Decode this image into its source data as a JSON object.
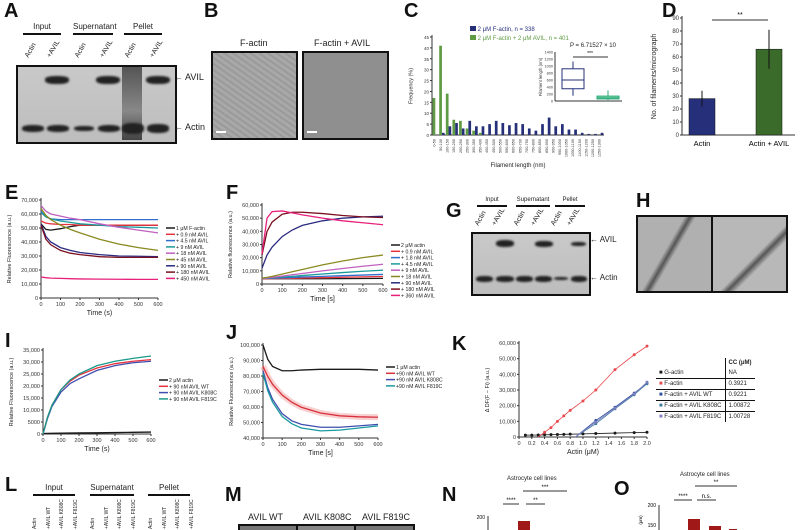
{
  "panels": {
    "A": "A",
    "B": "B",
    "C": "C",
    "D": "D",
    "E": "E",
    "F": "F",
    "G": "G",
    "H": "H",
    "I": "I",
    "J": "J",
    "K": "K",
    "L": "L",
    "M": "M",
    "N": "N",
    "O": "O"
  },
  "gel_a": {
    "groups": [
      "Input",
      "Supernatant",
      "Pellet"
    ],
    "lanes": [
      "Actin",
      "+AVIL",
      "Actin",
      "+AVIL",
      "Actin",
      "+AVIL"
    ],
    "markers": [
      "AVIL",
      "Actin"
    ]
  },
  "micro_b": {
    "labels": [
      "F-actin",
      "F-actin + AVIL"
    ]
  },
  "gel_g": {
    "groups": [
      "Input",
      "Supernatant",
      "Pellet"
    ],
    "lanes": [
      "Actin",
      "+AVIL",
      "Actin",
      "+AVIL",
      "Actin",
      "+AVIL"
    ],
    "markers": [
      "AVIL",
      "Actin"
    ]
  },
  "gel_l": {
    "groups": [
      "Input",
      "Supernatant",
      "Pellet"
    ],
    "lanes": [
      "Actin",
      "+AVIL WT",
      "+AVIL K808C",
      "+AVIL F819C",
      "Actin",
      "+AVIL WT",
      "+AVIL K808C",
      "+AVIL F819C",
      "Actin",
      "+AVIL WT",
      "+AVIL K808C",
      "+AVIL F819C"
    ]
  },
  "micro_m": {
    "labels": [
      "AVIL WT",
      "AVIL K808C",
      "AVIL F819C"
    ]
  },
  "chart_data": [
    {
      "panel": "C",
      "type": "bar",
      "ylabel": "Frequency (%)",
      "xlabel": "Filament length (nm)",
      "ylim": [
        0,
        45
      ],
      "yticks": [
        0,
        5,
        10,
        15,
        20,
        25,
        30,
        35,
        40,
        45
      ],
      "categories": [
        "0-50",
        "50-100",
        "100-150",
        "150-200",
        "200-250",
        "250-300",
        "300-350",
        "350-400",
        "400-450",
        "450-500",
        "500-550",
        "550-600",
        "600-650",
        "650-700",
        "700-750",
        "750-800",
        "800-850",
        "850-900",
        "900-950",
        "950-1000",
        "1000-1050",
        "1050-1100",
        "1100-1150",
        "1150-1200",
        "1200-1250",
        "1250-1300"
      ],
      "series": [
        {
          "name": "2 μM F-actin, n = 338",
          "color": "#26307a",
          "values": [
            0,
            1,
            4,
            5.5,
            3,
            6.5,
            4,
            4,
            5,
            6.5,
            5.5,
            4.5,
            5.5,
            5,
            3,
            2,
            5,
            8,
            4,
            5,
            2.5,
            2.5,
            1,
            0.5,
            0.5,
            1
          ]
        },
        {
          "name": "2 μM F-actin + 2 μM AVIL, n = 401",
          "color": "#5f9a45",
          "values": [
            17,
            41,
            19,
            7,
            6.5,
            3,
            2,
            1,
            0,
            0,
            0,
            0,
            0,
            0,
            0,
            0,
            0,
            0,
            0,
            0,
            0,
            0,
            0,
            0,
            0,
            0
          ]
        }
      ],
      "inset": {
        "type": "box",
        "ylabel": "Filament length (nm)",
        "ylim": [
          0,
          1400
        ],
        "yticks": [
          0,
          200,
          400,
          600,
          800,
          1000,
          1200,
          1400
        ],
        "p_text": "P = 6.71527 × 10",
        "sig": "***",
        "boxes": [
          {
            "color": "#26307a",
            "min": 150,
            "q1": 350,
            "median": 600,
            "q3": 920,
            "max": 1130
          },
          {
            "color": "#2aa873",
            "min": 30,
            "q1": 60,
            "median": 90,
            "q3": 140,
            "max": 300
          }
        ]
      }
    },
    {
      "panel": "D",
      "type": "bar",
      "ylabel": "No. of filaments/micrograph",
      "ylim": [
        0,
        90
      ],
      "yticks": [
        0,
        10,
        20,
        30,
        40,
        50,
        60,
        70,
        80,
        90
      ],
      "categories": [
        "Actin",
        "Actin + AVIL"
      ],
      "values": [
        28,
        66
      ],
      "errors": [
        6,
        15
      ],
      "colors": [
        "#26307a",
        "#3b6b2a"
      ],
      "sig": "**"
    },
    {
      "panel": "E",
      "type": "line",
      "xlabel": "Time (s)",
      "ylabel": "Relative Fluorescence (a.u.)",
      "xlim": [
        0,
        600
      ],
      "ylim": [
        0,
        70000
      ],
      "xticks": [
        0,
        100,
        200,
        300,
        400,
        500,
        600
      ],
      "yticks": [
        "0",
        "10,000",
        "20,000",
        "30,000",
        "40,000",
        "50,000",
        "60,000",
        "70,000"
      ],
      "x": [
        0,
        25,
        50,
        100,
        150,
        200,
        300,
        400,
        500,
        600
      ],
      "series": [
        {
          "name": "1 μM F-actin",
          "color": "#1a1a1a",
          "y": [
            53000,
            49000,
            48500,
            49500,
            51000,
            52000,
            52000,
            52000,
            52000,
            52000
          ]
        },
        {
          "name": "+ 0.9 nM AVIL",
          "color": "#e8323c",
          "y": [
            55000,
            53500,
            53000,
            52500,
            52500,
            52000,
            52000,
            52000,
            52000,
            52000
          ]
        },
        {
          "name": "+ 4.5 nM AVIL",
          "color": "#2f6fd0",
          "y": [
            62000,
            58000,
            56500,
            56000,
            56000,
            56000,
            56000,
            56000,
            56000,
            56000
          ]
        },
        {
          "name": "+ 9 nM AVIL",
          "color": "#1a9a9a",
          "y": [
            61000,
            58000,
            56500,
            55000,
            54000,
            53000,
            52000,
            51000,
            50500,
            50000
          ]
        },
        {
          "name": "+ 18 nM AVIL",
          "color": "#c060c0",
          "y": [
            66000,
            62000,
            60000,
            58500,
            57000,
            56000,
            53000,
            50500,
            48500,
            46500
          ]
        },
        {
          "name": "+ 45 nM AVIL",
          "color": "#8a8a20",
          "y": [
            64000,
            59000,
            56000,
            52000,
            49000,
            46500,
            42000,
            38500,
            36000,
            34000
          ]
        },
        {
          "name": "+ 90 nM AVIL",
          "color": "#2a2a80",
          "y": [
            53000,
            44000,
            40000,
            36000,
            34000,
            32500,
            31000,
            30000,
            29800,
            29500
          ]
        },
        {
          "name": "+ 180 nM AVIL",
          "color": "#7a1020",
          "y": [
            52000,
            42000,
            38000,
            34000,
            32000,
            31000,
            29500,
            29000,
            29000,
            29000
          ]
        },
        {
          "name": "+ 450 nM AVIL",
          "color": "#e8207a",
          "y": [
            15000,
            14500,
            14200,
            14000,
            13800,
            13600,
            13500,
            13400,
            13300,
            13300
          ]
        }
      ]
    },
    {
      "panel": "F",
      "type": "line",
      "xlabel": "Time [s]",
      "ylabel": "Relative fluorescence (a.u.)",
      "xlim": [
        0,
        600
      ],
      "ylim": [
        0,
        60000
      ],
      "xticks": [
        0,
        100,
        200,
        300,
        400,
        500,
        600
      ],
      "yticks": [
        "0",
        "10,000",
        "20,000",
        "30,000",
        "40,000",
        "50,000",
        "60,000"
      ],
      "x": [
        0,
        25,
        50,
        100,
        150,
        200,
        300,
        400,
        500,
        600
      ],
      "series": [
        {
          "name": "2 μM actin",
          "color": "#1a1a1a",
          "y": [
            4000,
            4000,
            4000,
            4000,
            4000,
            4000,
            4000,
            4100,
            4200,
            4300
          ]
        },
        {
          "name": "+ 0.9 nM AVIL",
          "color": "#e8323c",
          "y": [
            4000,
            4000,
            4100,
            4200,
            4300,
            4500,
            4800,
            5100,
            5400,
            5700
          ]
        },
        {
          "name": "+ 1.8 nM AVIL",
          "color": "#2f6fd0",
          "y": [
            4200,
            4300,
            4400,
            4700,
            5000,
            5300,
            5800,
            6300,
            6800,
            7300
          ]
        },
        {
          "name": "+ 4.5 nM AVIL",
          "color": "#1a9a9a",
          "y": [
            4300,
            4500,
            4800,
            5300,
            5800,
            6400,
            7600,
            8700,
            9700,
            10500
          ]
        },
        {
          "name": "+ 9 nM AVIL",
          "color": "#c060c0",
          "y": [
            4300,
            4600,
            5000,
            6000,
            7000,
            8000,
            10000,
            11800,
            13500,
            15000
          ]
        },
        {
          "name": "+ 18 nM AVIL",
          "color": "#8a8a20",
          "y": [
            4500,
            5000,
            5800,
            7500,
            9300,
            11000,
            14500,
            17500,
            20000,
            22000
          ]
        },
        {
          "name": "+ 90 nM AVIL",
          "color": "#2a2a80",
          "y": [
            12000,
            22000,
            28000,
            36000,
            41000,
            44500,
            48000,
            50000,
            51000,
            51500
          ]
        },
        {
          "name": "+ 180 nM AVIL",
          "color": "#7a1020",
          "y": [
            22000,
            40000,
            47000,
            53000,
            54500,
            54500,
            53500,
            52000,
            51000,
            50500
          ]
        },
        {
          "name": "+ 360 nM AVIL",
          "color": "#e8207a",
          "y": [
            23000,
            50000,
            55000,
            55500,
            54000,
            52500,
            50000,
            48000,
            46500,
            45000
          ]
        }
      ]
    },
    {
      "panel": "I",
      "type": "line",
      "xlabel": "Time (s)",
      "ylabel": "Relative Fluorescence (a.u.)",
      "xlim": [
        0,
        600
      ],
      "ylim": [
        0,
        35000
      ],
      "xticks": [
        0,
        100,
        200,
        300,
        400,
        500,
        600
      ],
      "yticks": [
        "0",
        "5000",
        "10,000",
        "15,000",
        "20,000",
        "25,000",
        "30,000",
        "35,000"
      ],
      "x": [
        0,
        25,
        50,
        100,
        150,
        200,
        300,
        400,
        500,
        600
      ],
      "series": [
        {
          "name": "2 μM actin",
          "color": "#1a1a1a",
          "y": [
            200,
            250,
            300,
            350,
            400,
            450,
            500,
            600,
            700,
            800
          ]
        },
        {
          "name": "+ 90 nM AVIL WT",
          "color": "#e8323c",
          "y": [
            0,
            7000,
            12000,
            18500,
            22000,
            24500,
            27500,
            29300,
            30300,
            31000
          ]
        },
        {
          "name": "+ 90 nM AVIL K808C",
          "color": "#3f4fb0",
          "y": [
            0,
            6500,
            11500,
            17500,
            21000,
            23000,
            26500,
            28500,
            29700,
            30300
          ]
        },
        {
          "name": "+ 90 nM AVIL F819C",
          "color": "#1a9a8a",
          "y": [
            0,
            7000,
            12000,
            18500,
            22500,
            25000,
            28500,
            30300,
            31500,
            32500
          ]
        }
      ]
    },
    {
      "panel": "J",
      "type": "line",
      "xlabel": "Time [s]",
      "ylabel": "Relative Fluorescence (a.u.)",
      "xlim": [
        0,
        600
      ],
      "ylim": [
        35000,
        100000
      ],
      "xticks": [
        0,
        100,
        200,
        300,
        400,
        500,
        600
      ],
      "yticks": [
        "40,000",
        "50,000",
        "60,000",
        "70,000",
        "80,000",
        "90,000",
        "100,000"
      ],
      "x": [
        0,
        25,
        50,
        100,
        150,
        200,
        300,
        400,
        500,
        600
      ],
      "series": [
        {
          "name": "1 μM actin",
          "color": "#1a1a1a",
          "y": [
            100000,
            90000,
            85000,
            82000,
            82000,
            82500,
            83000,
            83000,
            83000,
            82500
          ]
        },
        {
          "name": "+90 nM AVIL WT",
          "color": "#d8303c",
          "y": [
            85000,
            78000,
            72500,
            65000,
            60000,
            56500,
            52500,
            50500,
            49800,
            49500
          ]
        },
        {
          "name": "+90 nM AVIL K808C",
          "color": "#3f4fb0",
          "y": [
            82000,
            70000,
            62000,
            52000,
            47000,
            44500,
            42500,
            42500,
            43500,
            44500
          ]
        },
        {
          "name": "+90 nM AVIL F819C",
          "color": "#1a9aa0",
          "y": [
            80000,
            68000,
            60000,
            50000,
            45000,
            42000,
            40000,
            40500,
            42000,
            43500
          ]
        }
      ]
    },
    {
      "panel": "K",
      "type": "scatter",
      "xlabel": "Actin (μM)",
      "ylabel": "Δ DF(F − Fi) (a.u.)",
      "xlim": [
        0,
        2
      ],
      "ylim": [
        0,
        60000
      ],
      "xticks": [
        "0",
        "0.2",
        "0.4",
        "0.6",
        "0.8",
        "1.0",
        "1.2",
        "1.4",
        "1.6",
        "1.8",
        "2.0"
      ],
      "yticks": [
        "0",
        "10,000",
        "20,000",
        "30,000",
        "40,000",
        "50,000",
        "60,000"
      ],
      "table_header": "CC (μM)",
      "series": [
        {
          "name": "G-actin",
          "cc": "NA",
          "color": "#1a1a1a",
          "x": [
            0.1,
            0.2,
            0.3,
            0.4,
            0.5,
            0.6,
            0.7,
            0.8,
            1.0,
            1.2,
            1.5,
            1.8,
            2.0
          ],
          "y": [
            1200,
            1200,
            1300,
            1400,
            1500,
            1600,
            1700,
            1800,
            2000,
            2200,
            2500,
            2800,
            3000
          ]
        },
        {
          "name": "F-actin",
          "cc": "0.3921",
          "color": "#e84a50",
          "x": [
            0.4,
            0.5,
            0.6,
            0.7,
            0.8,
            1.0,
            1.2,
            1.5,
            1.8,
            2.0
          ],
          "y": [
            3000,
            6000,
            10000,
            13500,
            17000,
            23000,
            30000,
            43000,
            52500,
            58000
          ]
        },
        {
          "name": "F-actin + AVIL WT",
          "cc": "0.9221",
          "color": "#2a4a9a",
          "x": [
            1.2,
            1.5,
            1.8,
            2.0
          ],
          "y": [
            10500,
            19000,
            28000,
            34500
          ]
        },
        {
          "name": "F-actin + AVIL K808C",
          "cc": "1.00872",
          "color": "#3a7aa0",
          "x": [
            1.2,
            1.5,
            1.8,
            2.0
          ],
          "y": [
            8500,
            18000,
            27000,
            34000
          ]
        },
        {
          "name": "F-actin + AVIL F819C",
          "cc": "1.00728",
          "color": "#8080c0",
          "x": [
            1.2,
            1.5,
            1.8,
            2.0
          ],
          "y": [
            9500,
            18500,
            27500,
            35000
          ]
        }
      ]
    },
    {
      "panel": "N",
      "type": "bar",
      "title": "Astrocyte cell lines",
      "yticks": [
        "200"
      ],
      "sig": [
        "****",
        "**",
        "***"
      ],
      "color": "#a01818"
    },
    {
      "panel": "O",
      "type": "bar",
      "title": "Astrocyte cell lines",
      "ylabel": "(μm)",
      "yticks": [
        "200",
        "150"
      ],
      "sig": [
        "****",
        "n.s.",
        "**"
      ],
      "color": "#a01818"
    }
  ]
}
